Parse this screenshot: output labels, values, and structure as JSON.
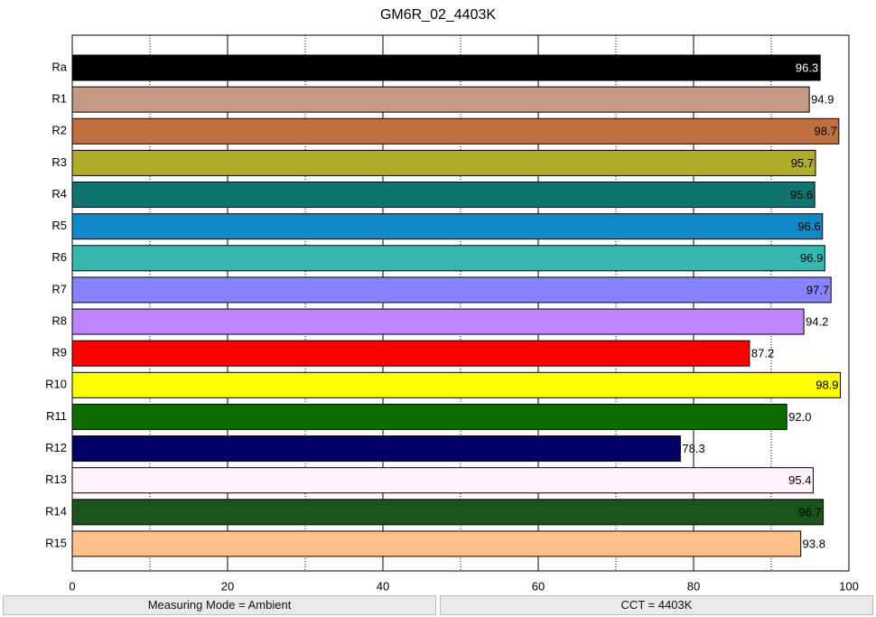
{
  "chart_data": {
    "type": "bar",
    "orientation": "horizontal",
    "title": "GM6R_02_4403K",
    "categories": [
      "Ra",
      "R1",
      "R2",
      "R3",
      "R4",
      "R5",
      "R6",
      "R7",
      "R8",
      "R9",
      "R10",
      "R11",
      "R12",
      "R13",
      "R14",
      "R15"
    ],
    "values": [
      96.3,
      94.9,
      98.7,
      95.7,
      95.6,
      96.6,
      96.9,
      97.7,
      94.2,
      87.2,
      98.9,
      92.0,
      78.3,
      95.4,
      96.7,
      93.8
    ],
    "value_labels": [
      "96.3",
      "94.9",
      "98.7",
      "95.7",
      "95.6",
      "96.6",
      "96.9",
      "97.7",
      "94.2",
      "87.2",
      "98.9",
      "92.0",
      "78.3",
      "95.4",
      "96.7",
      "93.8"
    ],
    "colors": [
      "#000000",
      "#c49a85",
      "#bf7041",
      "#b0ac2a",
      "#117370",
      "#1088c8",
      "#36b7b0",
      "#8783fe",
      "#bf83fe",
      "#ff0000",
      "#ffff00",
      "#0d6b00",
      "#000066",
      "#fff0fa",
      "#1b541b",
      "#ffc187"
    ],
    "xlim": [
      0,
      100
    ],
    "xticks": [
      0,
      20,
      40,
      60,
      80,
      100
    ],
    "xminorticks": [
      10,
      30,
      50,
      70,
      90
    ],
    "grid": true
  },
  "footer": [
    "Measuring Mode = Ambient",
    "CCT = 4403K"
  ]
}
